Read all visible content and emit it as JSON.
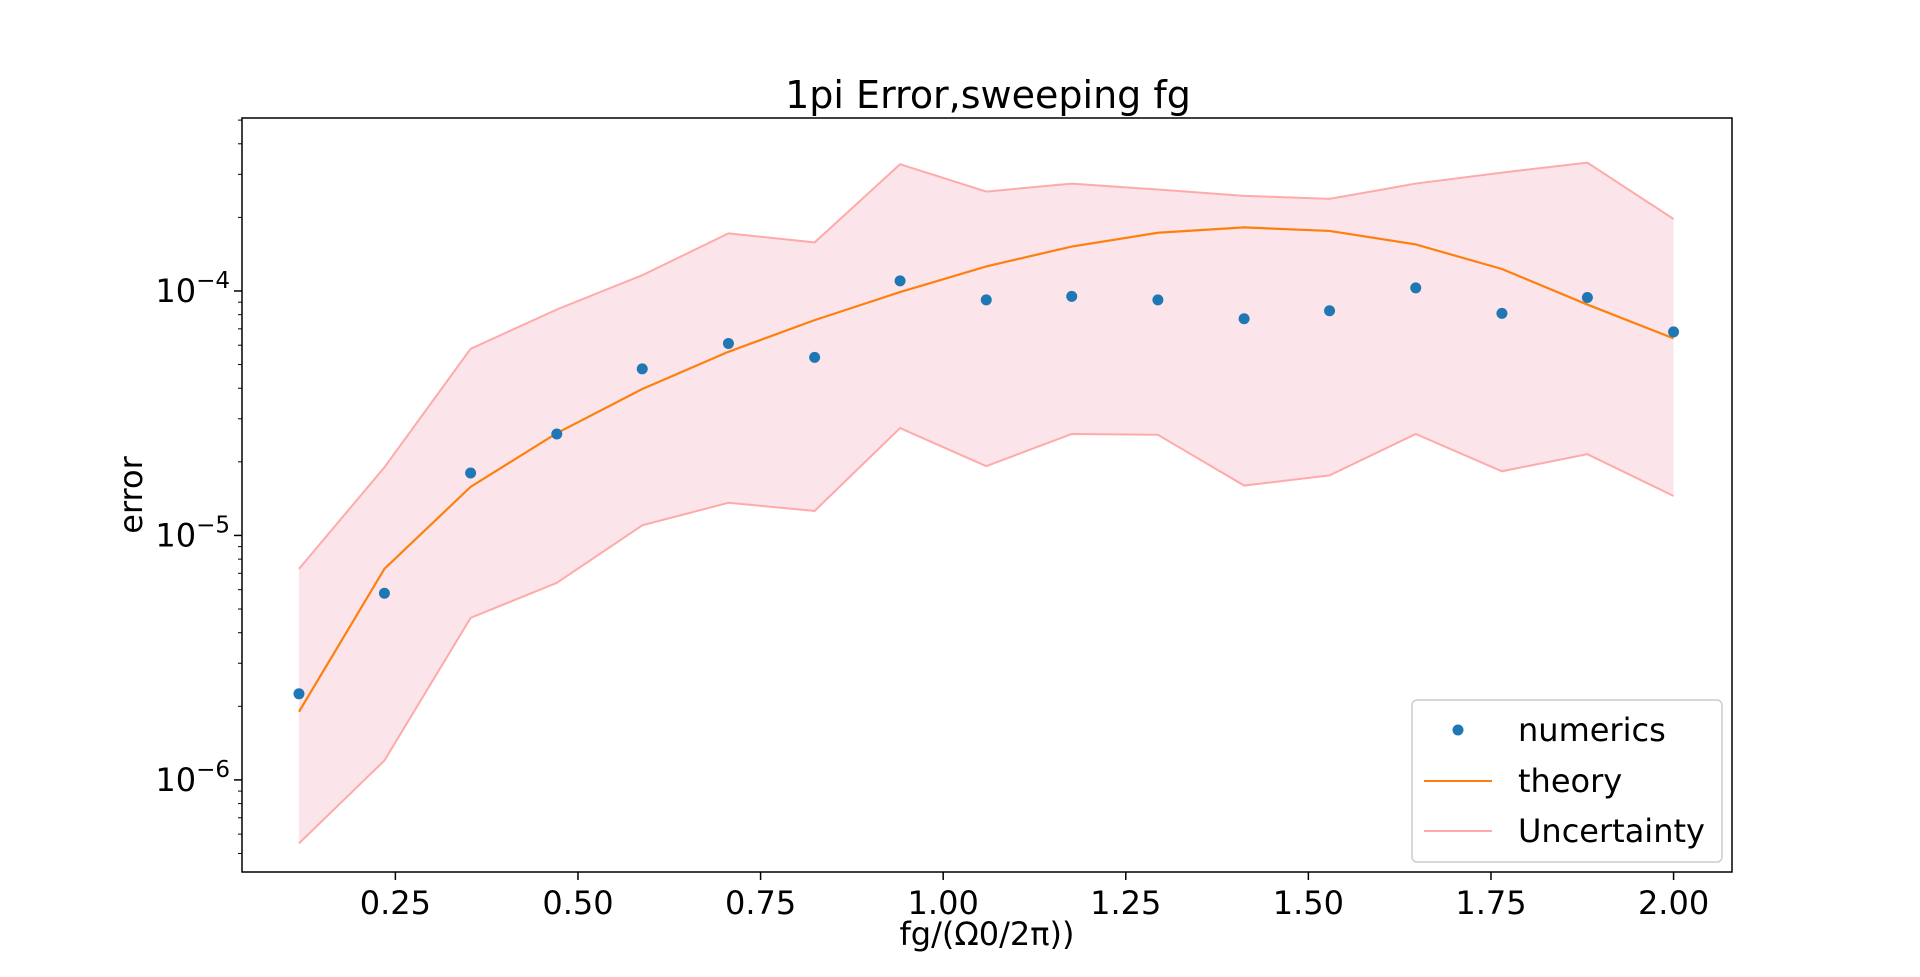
{
  "chart_data": {
    "type": "scatter",
    "title": "1pi Error,sweeping fg",
    "xlabel": "fg/(Ω0/2π))",
    "ylabel": "error",
    "xlim": [
      0.04,
      2.08
    ],
    "ylim": [
      4.2e-07,
      0.00051
    ],
    "yscale": "log",
    "grid": false,
    "legend_position": "lower-right",
    "x_ticks": [
      {
        "value": 0.25,
        "label": "0.25"
      },
      {
        "value": 0.5,
        "label": "0.50"
      },
      {
        "value": 0.75,
        "label": "0.75"
      },
      {
        "value": 1.0,
        "label": "1.00"
      },
      {
        "value": 1.25,
        "label": "1.25"
      },
      {
        "value": 1.5,
        "label": "1.50"
      },
      {
        "value": 1.75,
        "label": "1.75"
      },
      {
        "value": 2.0,
        "label": "2.00"
      }
    ],
    "y_ticks": [
      {
        "value": 1e-06,
        "base": "10",
        "exp": "−6"
      },
      {
        "value": 1e-05,
        "base": "10",
        "exp": "−5"
      },
      {
        "value": 0.0001,
        "base": "10",
        "exp": "−4"
      }
    ],
    "x": [
      0.118,
      0.235,
      0.353,
      0.471,
      0.588,
      0.706,
      0.824,
      0.941,
      1.059,
      1.176,
      1.294,
      1.412,
      1.529,
      1.647,
      1.765,
      1.882,
      2.0
    ],
    "series": [
      {
        "name": "numerics",
        "style": "markers",
        "color": "#1f77b4",
        "values": [
          2.25e-06,
          5.8e-06,
          1.8e-05,
          2.6e-05,
          4.8e-05,
          6.1e-05,
          5.35e-05,
          0.00011,
          9.2e-05,
          9.5e-05,
          9.2e-05,
          7.7e-05,
          8.3e-05,
          0.000103,
          8.1e-05,
          9.4e-05,
          6.8e-05
        ]
      },
      {
        "name": "theory",
        "style": "line",
        "color": "#ff7f0e",
        "values": [
          1.9e-06,
          7.3e-06,
          1.58e-05,
          2.62e-05,
          3.97e-05,
          5.64e-05,
          7.6e-05,
          9.9e-05,
          0.000126,
          0.000152,
          0.000173,
          0.000182,
          0.000176,
          0.000155,
          0.000123,
          8.8e-05,
          6.4e-05
        ]
      },
      {
        "name": "Uncertainty",
        "style": "band",
        "color": "#ffaaaa",
        "fill_color": "#fbe5ea",
        "upper": [
          7.3e-06,
          1.9e-05,
          5.8e-05,
          8.4e-05,
          0.000116,
          0.000172,
          0.000158,
          0.00033,
          0.000255,
          0.000275,
          0.00026,
          0.000245,
          0.000238,
          0.000275,
          0.000305,
          0.000335,
          0.000197
        ],
        "lower": [
          5.5e-07,
          1.2e-06,
          4.6e-06,
          6.4e-06,
          1.1e-05,
          1.36e-05,
          1.26e-05,
          2.75e-05,
          1.92e-05,
          2.6e-05,
          2.58e-05,
          1.6e-05,
          1.76e-05,
          2.6e-05,
          1.83e-05,
          2.15e-05,
          1.45e-05
        ]
      }
    ]
  }
}
